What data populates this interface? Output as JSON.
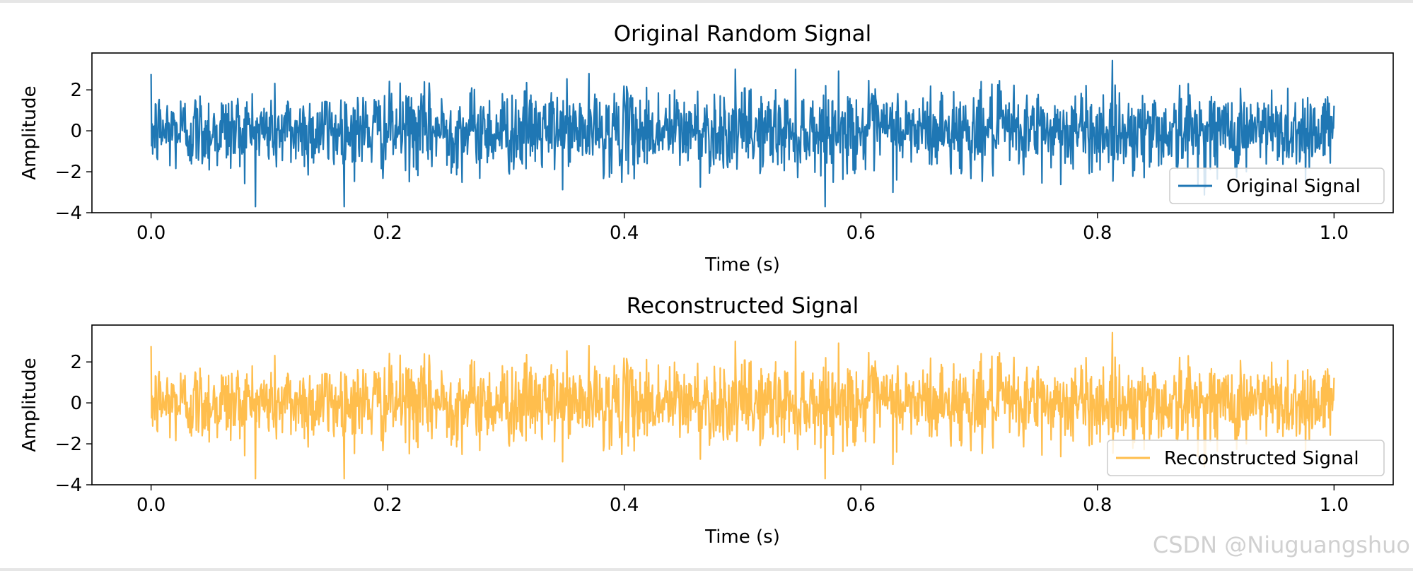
{
  "chart_data": [
    {
      "type": "line",
      "title": "Original Random Signal",
      "xlabel": "Time (s)",
      "ylabel": "Amplitude",
      "xlim": [
        -0.05,
        1.05
      ],
      "ylim": [
        -4.0,
        3.8
      ],
      "xticks": [
        "0.0",
        "0.2",
        "0.4",
        "0.6",
        "0.8",
        "1.0"
      ],
      "yticks": [
        "-4",
        "-2",
        "0",
        "2"
      ],
      "legend": "lower-right",
      "grid": false,
      "series": [
        {
          "name": "Original Signal",
          "color": "#1f77b4",
          "x_range": [
            0.0,
            1.0
          ],
          "distribution": "gaussian noise, mean 0, std 1",
          "peak_max": 3.5,
          "peak_min": -3.7
        }
      ]
    },
    {
      "type": "line",
      "title": "Reconstructed Signal",
      "xlabel": "Time (s)",
      "ylabel": "Amplitude",
      "xlim": [
        -0.05,
        1.05
      ],
      "ylim": [
        -4.0,
        3.8
      ],
      "xticks": [
        "0.0",
        "0.2",
        "0.4",
        "0.6",
        "0.8",
        "1.0"
      ],
      "yticks": [
        "-4",
        "-2",
        "0",
        "2"
      ],
      "legend": "lower-right",
      "grid": false,
      "series": [
        {
          "name": "Reconstructed Signal",
          "color": "#ffbe4d",
          "x_range": [
            0.0,
            1.0
          ],
          "distribution": "gaussian noise, mean 0, std 1",
          "peak_max": 3.5,
          "peak_min": -3.7
        }
      ]
    }
  ],
  "watermark": "CSDN @Niuguangshuo"
}
